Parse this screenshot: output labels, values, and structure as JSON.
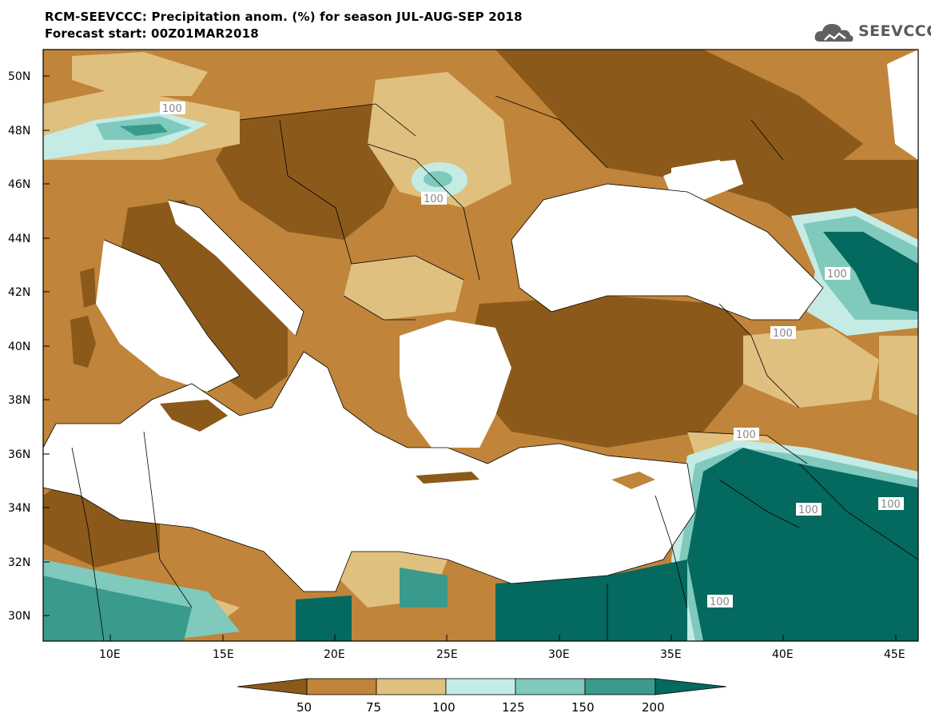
{
  "header": {
    "title_line1": "RCM-SEEVCCC: Precipitation anom. (%) for season JUL-AUG-SEP 2018",
    "title_line2": "Forecast start: 00Z01MAR2018",
    "logo_text": "SEEVCCC"
  },
  "map": {
    "lat_ticks": [
      "50N",
      "48N",
      "46N",
      "44N",
      "42N",
      "40N",
      "38N",
      "36N",
      "34N",
      "32N",
      "30N"
    ],
    "lon_ticks": [
      "10E",
      "15E",
      "20E",
      "25E",
      "30E",
      "35E",
      "40E",
      "45E"
    ],
    "contour_labels": [
      "100",
      "100",
      "100",
      "100",
      "100",
      "100",
      "100",
      "100"
    ],
    "colors": {
      "very_dry": "#8b5a1a",
      "dry": "#c0843a",
      "slightly_dry": "#e0c07e",
      "slightly_wet": "#c5ebe5",
      "wet": "#7fc9bd",
      "wetter": "#3a9a8c",
      "very_wet": "#04695e",
      "sea": "#ffffff"
    }
  },
  "colorbar": {
    "ticks": [
      "50",
      "75",
      "100",
      "125",
      "150",
      "200"
    ],
    "bins": [
      "#8b5a1a",
      "#c0843a",
      "#e0c07e",
      "#c5ebe5",
      "#7fc9bd",
      "#3a9a8c",
      "#04695e"
    ]
  }
}
